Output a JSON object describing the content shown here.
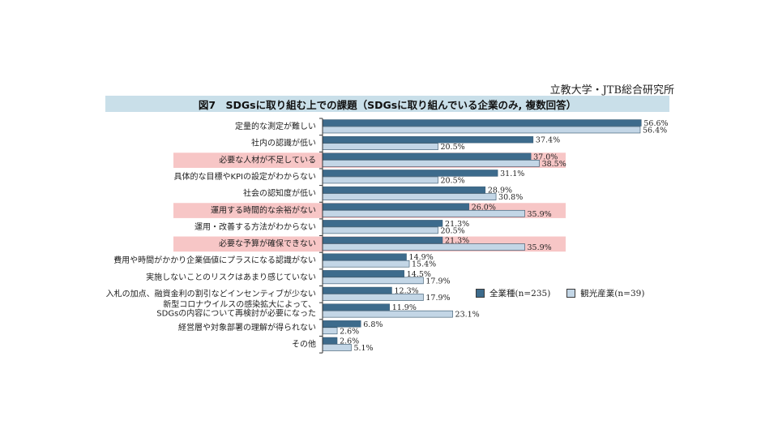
{
  "source": "立教大学・JTB総合研究所",
  "chart_data": {
    "type": "bar",
    "orientation": "horizontal",
    "title": "図7　SDGsに取り組む上での課題（SDGsに取り組んでいる企業のみ, 複数回答）",
    "categories": [
      "定量的な測定が難しい",
      "社内の認識が低い",
      "必要な人材が不足している",
      "具体的な目標やKPIの設定がわからない",
      "社会の認知度が低い",
      "運用する時間的な余裕がない",
      "運用・改善する方法がわからない",
      "必要な予算が確保できない",
      "費用や時間がかかり企業価値にプラスになる認識がない",
      "実施しないことのリスクはあまり感じていない",
      "入札の加点、融資金利の割引などインセンティブが少ない",
      [
        "新型コロナウイルスの感染拡大によって、",
        "SDGsの内容について再検討が必要になった"
      ],
      "経営層や対象部署の理解が得られない",
      "その他"
    ],
    "highlighted": [
      2,
      5,
      7
    ],
    "series": [
      {
        "name": "全業種(n=235)",
        "color": "#3d6b8c",
        "values": [
          56.6,
          37.4,
          37.0,
          31.1,
          28.9,
          26.0,
          21.3,
          21.3,
          14.9,
          14.5,
          12.3,
          11.9,
          6.8,
          2.6
        ]
      },
      {
        "name": "観光産業(n=39)",
        "color": "#c3d6e6",
        "values": [
          56.4,
          20.5,
          38.5,
          20.5,
          30.8,
          35.9,
          20.5,
          35.9,
          15.4,
          17.9,
          17.9,
          23.1,
          2.6,
          5.1
        ]
      }
    ],
    "value_suffix": "%",
    "highlight_color": "#f7c6c6",
    "legend_position": "right",
    "xlim": [
      0,
      60
    ],
    "grid": false
  }
}
